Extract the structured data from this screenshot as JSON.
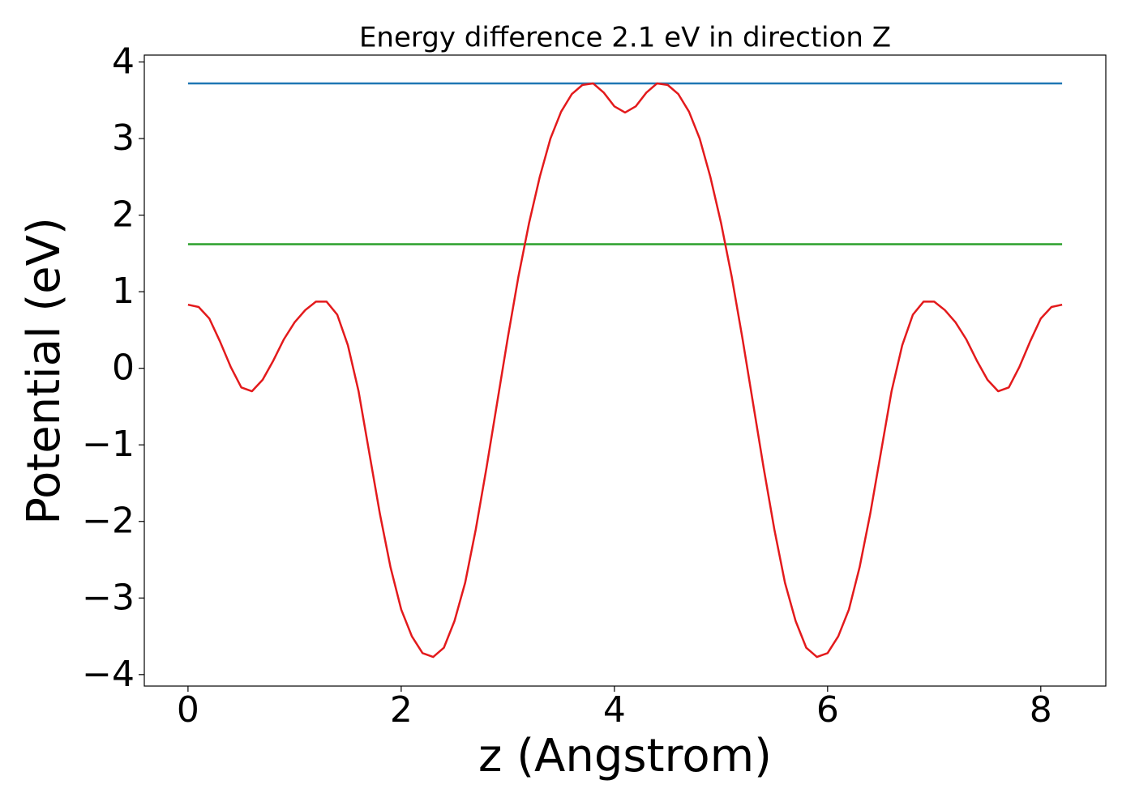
{
  "chart_data": {
    "type": "line",
    "title": "Energy difference 2.1 eV in direction Z",
    "xlabel": "z (Angstrom)",
    "ylabel": "Potential (eV)",
    "xlim": [
      -0.41,
      8.61
    ],
    "ylim": [
      -4.15,
      4.09
    ],
    "xticks": [
      0,
      2,
      4,
      6,
      8
    ],
    "yticks": [
      {
        "value": -4,
        "label": "−4"
      },
      {
        "value": -3,
        "label": "−3"
      },
      {
        "value": -2,
        "label": "−2"
      },
      {
        "value": -1,
        "label": "−1"
      },
      0,
      1,
      2,
      3,
      4
    ],
    "grid": false,
    "series": [
      {
        "color": "#1f77b4",
        "x": [
          0,
          8.2
        ],
        "values": [
          3.72,
          3.72
        ]
      },
      {
        "color": "#2ca02c",
        "x": [
          0,
          8.2
        ],
        "values": [
          1.62,
          1.62
        ]
      },
      {
        "color": "#e31a1c",
        "x": [
          0,
          0.1,
          0.2,
          0.3,
          0.4,
          0.5,
          0.6,
          0.7,
          0.8,
          0.9,
          1.0,
          1.1,
          1.2,
          1.3,
          1.4,
          1.5,
          1.6,
          1.7,
          1.8,
          1.9,
          2.0,
          2.1,
          2.2,
          2.3,
          2.4,
          2.5,
          2.6,
          2.7,
          2.8,
          2.9,
          3.0,
          3.1,
          3.2,
          3.3,
          3.4,
          3.5,
          3.6,
          3.7,
          3.8,
          3.9,
          4.0,
          4.1,
          4.2,
          4.3,
          4.4,
          4.5,
          4.6,
          4.7,
          4.8,
          4.9,
          5.0,
          5.1,
          5.2,
          5.3,
          5.4,
          5.5,
          5.6,
          5.7,
          5.8,
          5.9,
          6.0,
          6.1,
          6.2,
          6.3,
          6.4,
          6.5,
          6.6,
          6.7,
          6.8,
          6.9,
          7.0,
          7.1,
          7.2,
          7.3,
          7.4,
          7.5,
          7.6,
          7.7,
          7.8,
          7.9,
          8.0,
          8.1,
          8.2
        ],
        "values": [
          0.83,
          0.8,
          0.65,
          0.35,
          0.02,
          -0.25,
          -0.3,
          -0.15,
          0.1,
          0.38,
          0.6,
          0.76,
          0.87,
          0.87,
          0.7,
          0.3,
          -0.3,
          -1.1,
          -1.9,
          -2.6,
          -3.15,
          -3.5,
          -3.72,
          -3.77,
          -3.65,
          -3.3,
          -2.8,
          -2.1,
          -1.3,
          -0.45,
          0.4,
          1.2,
          1.9,
          2.5,
          3.0,
          3.35,
          3.58,
          3.7,
          3.72,
          3.6,
          3.42,
          3.34,
          3.42,
          3.6,
          3.72,
          3.7,
          3.58,
          3.35,
          3.0,
          2.5,
          1.9,
          1.2,
          0.4,
          -0.45,
          -1.3,
          -2.1,
          -2.8,
          -3.3,
          -3.65,
          -3.77,
          -3.72,
          -3.5,
          -3.15,
          -2.6,
          -1.9,
          -1.1,
          -0.3,
          0.3,
          0.7,
          0.87,
          0.87,
          0.76,
          0.6,
          0.38,
          0.1,
          -0.15,
          -0.3,
          -0.25,
          0.02,
          0.35,
          0.65,
          0.8,
          0.83
        ]
      }
    ]
  }
}
